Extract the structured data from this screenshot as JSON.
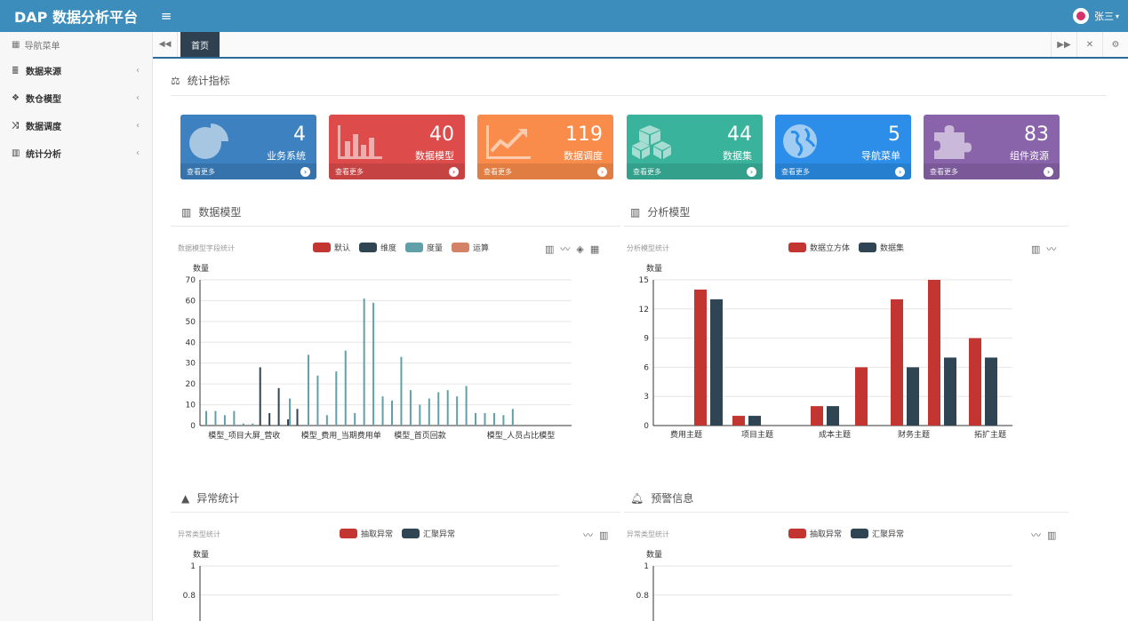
{
  "header": {
    "brand": "DAP 数据分析平台",
    "menu_icon": "≡",
    "user_name": "张三"
  },
  "sidebar": {
    "title": "导航菜单",
    "items": [
      {
        "label": "数据来源",
        "icon": "database-icon",
        "glyph": "≣"
      },
      {
        "label": "数仓模型",
        "icon": "cubes-icon",
        "glyph": "❖"
      },
      {
        "label": "数据调度",
        "icon": "random-icon",
        "glyph": "⤨"
      },
      {
        "label": "统计分析",
        "icon": "bar-chart-icon",
        "glyph": "▥"
      }
    ]
  },
  "tabs": {
    "active": "首页"
  },
  "stats_section": {
    "title": "统计指标"
  },
  "stats": [
    {
      "value": "4",
      "label": "业务系统",
      "more": "查看更多",
      "color": "#3d81c0",
      "icon": "pie-chart-icon"
    },
    {
      "value": "40",
      "label": "数据模型",
      "more": "查看更多",
      "color": "#dd4b4b",
      "icon": "bar-chart-icon"
    },
    {
      "value": "119",
      "label": "数据调度",
      "more": "查看更多",
      "color": "#f98c4a",
      "icon": "line-chart-icon"
    },
    {
      "value": "44",
      "label": "数据集",
      "more": "查看更多",
      "color": "#39b39b",
      "icon": "cubes-icon"
    },
    {
      "value": "5",
      "label": "导航菜单",
      "more": "查看更多",
      "color": "#2c8ee8",
      "icon": "globe-icon"
    },
    {
      "value": "83",
      "label": "组件资源",
      "more": "查看更多",
      "color": "#8a64ab",
      "icon": "puzzle-icon"
    }
  ],
  "panels": {
    "data_model": {
      "title": "数据模型",
      "subtitle": "数据模型字段统计"
    },
    "analysis_model": {
      "title": "分析模型",
      "subtitle": "分析模型统计"
    },
    "anomaly": {
      "title": "异常统计",
      "subtitle": "异常类型统计"
    },
    "warning": {
      "title": "预警信息",
      "subtitle": "异常类型统计"
    }
  },
  "chart_data": [
    {
      "type": "bar",
      "title": "数据模型字段统计",
      "ylabel": "数量",
      "ylim": [
        0,
        70
      ],
      "yticks": [
        0,
        10,
        20,
        30,
        40,
        50,
        60,
        70
      ],
      "category_count": 40,
      "visible_tick_labels": [
        {
          "index": 0,
          "label": "模型_项目大屏_营收"
        },
        {
          "index": 10,
          "label": "模型_费用_当期费用单"
        },
        {
          "index": 20,
          "label": "模型_首页回款"
        },
        {
          "index": 30,
          "label": "模型_人员占比模型"
        }
      ],
      "series": [
        {
          "name": "默认",
          "color": "#c23531",
          "values": [
            0,
            0,
            0,
            0,
            0,
            0,
            0,
            0,
            0,
            0,
            0,
            0,
            0,
            0,
            0,
            0,
            0,
            0,
            0,
            0,
            0,
            0,
            0,
            0,
            0,
            0,
            0,
            0,
            0,
            0,
            0,
            0,
            0,
            0,
            0,
            0,
            0,
            0,
            0,
            0
          ]
        },
        {
          "name": "维度",
          "color": "#2f4554",
          "values": [
            0,
            0,
            0,
            0,
            0,
            0,
            28,
            6,
            18,
            3,
            8,
            0,
            0,
            0,
            0,
            0,
            0,
            0,
            0,
            0,
            0,
            0,
            0,
            0,
            0,
            0,
            0,
            0,
            0,
            0,
            0,
            0,
            0,
            0,
            0,
            0,
            0,
            0,
            0,
            0
          ]
        },
        {
          "name": "度量",
          "color": "#61a0a8",
          "values": [
            7,
            7,
            5,
            7,
            1,
            1,
            0,
            0,
            0,
            13,
            0,
            34,
            24,
            5,
            26,
            36,
            6,
            61,
            59,
            14,
            12,
            33,
            17,
            10,
            13,
            16,
            17,
            14,
            19,
            6,
            6,
            6,
            5,
            8,
            0,
            0,
            0,
            0,
            0,
            0
          ]
        },
        {
          "name": "运算",
          "color": "#d48265",
          "values": [
            0,
            0,
            0,
            0,
            0,
            0,
            0,
            0,
            0,
            0,
            0,
            0,
            0,
            0,
            0,
            0,
            0,
            0,
            0,
            0,
            0,
            0,
            0,
            0,
            0,
            0,
            0,
            0,
            0,
            0,
            0,
            0,
            0,
            0,
            0,
            0,
            0,
            0,
            0,
            0
          ]
        }
      ]
    },
    {
      "type": "bar",
      "title": "分析模型统计",
      "ylabel": "数量",
      "ylim": [
        0,
        15
      ],
      "yticks": [
        0,
        3,
        6,
        9,
        12,
        15
      ],
      "categories": [
        "费用主题",
        "项目主题",
        "成本主题",
        "财务主题",
        "拓扩主题"
      ],
      "series": [
        {
          "name": "数据立方体",
          "color": "#c23531",
          "values": [
            14,
            1,
            2,
            13,
            9
          ]
        },
        {
          "name": "数据集",
          "color": "#2f4554",
          "values": [
            13,
            1,
            2,
            6,
            7
          ]
        }
      ],
      "extra_pairs": [
        {
          "after_category": 2,
          "cube": 6,
          "set": null
        },
        {
          "after_category": 3,
          "cube": 15,
          "set": 7
        }
      ]
    },
    {
      "type": "line",
      "title": "异常类型统计",
      "ylabel": "数量",
      "ylim": [
        0,
        1
      ],
      "yticks": [
        0.8,
        1
      ],
      "series": [
        {
          "name": "抽取异常",
          "color": "#c23531",
          "values": []
        },
        {
          "name": "汇聚异常",
          "color": "#2f4554",
          "values": []
        }
      ]
    },
    {
      "type": "line",
      "title": "异常类型统计",
      "ylabel": "数量",
      "ylim": [
        0,
        1
      ],
      "yticks": [
        0.8,
        1
      ],
      "series": [
        {
          "name": "抽取异常",
          "color": "#c23531",
          "values": []
        },
        {
          "name": "汇聚异常",
          "color": "#2f4554",
          "values": []
        }
      ]
    }
  ]
}
